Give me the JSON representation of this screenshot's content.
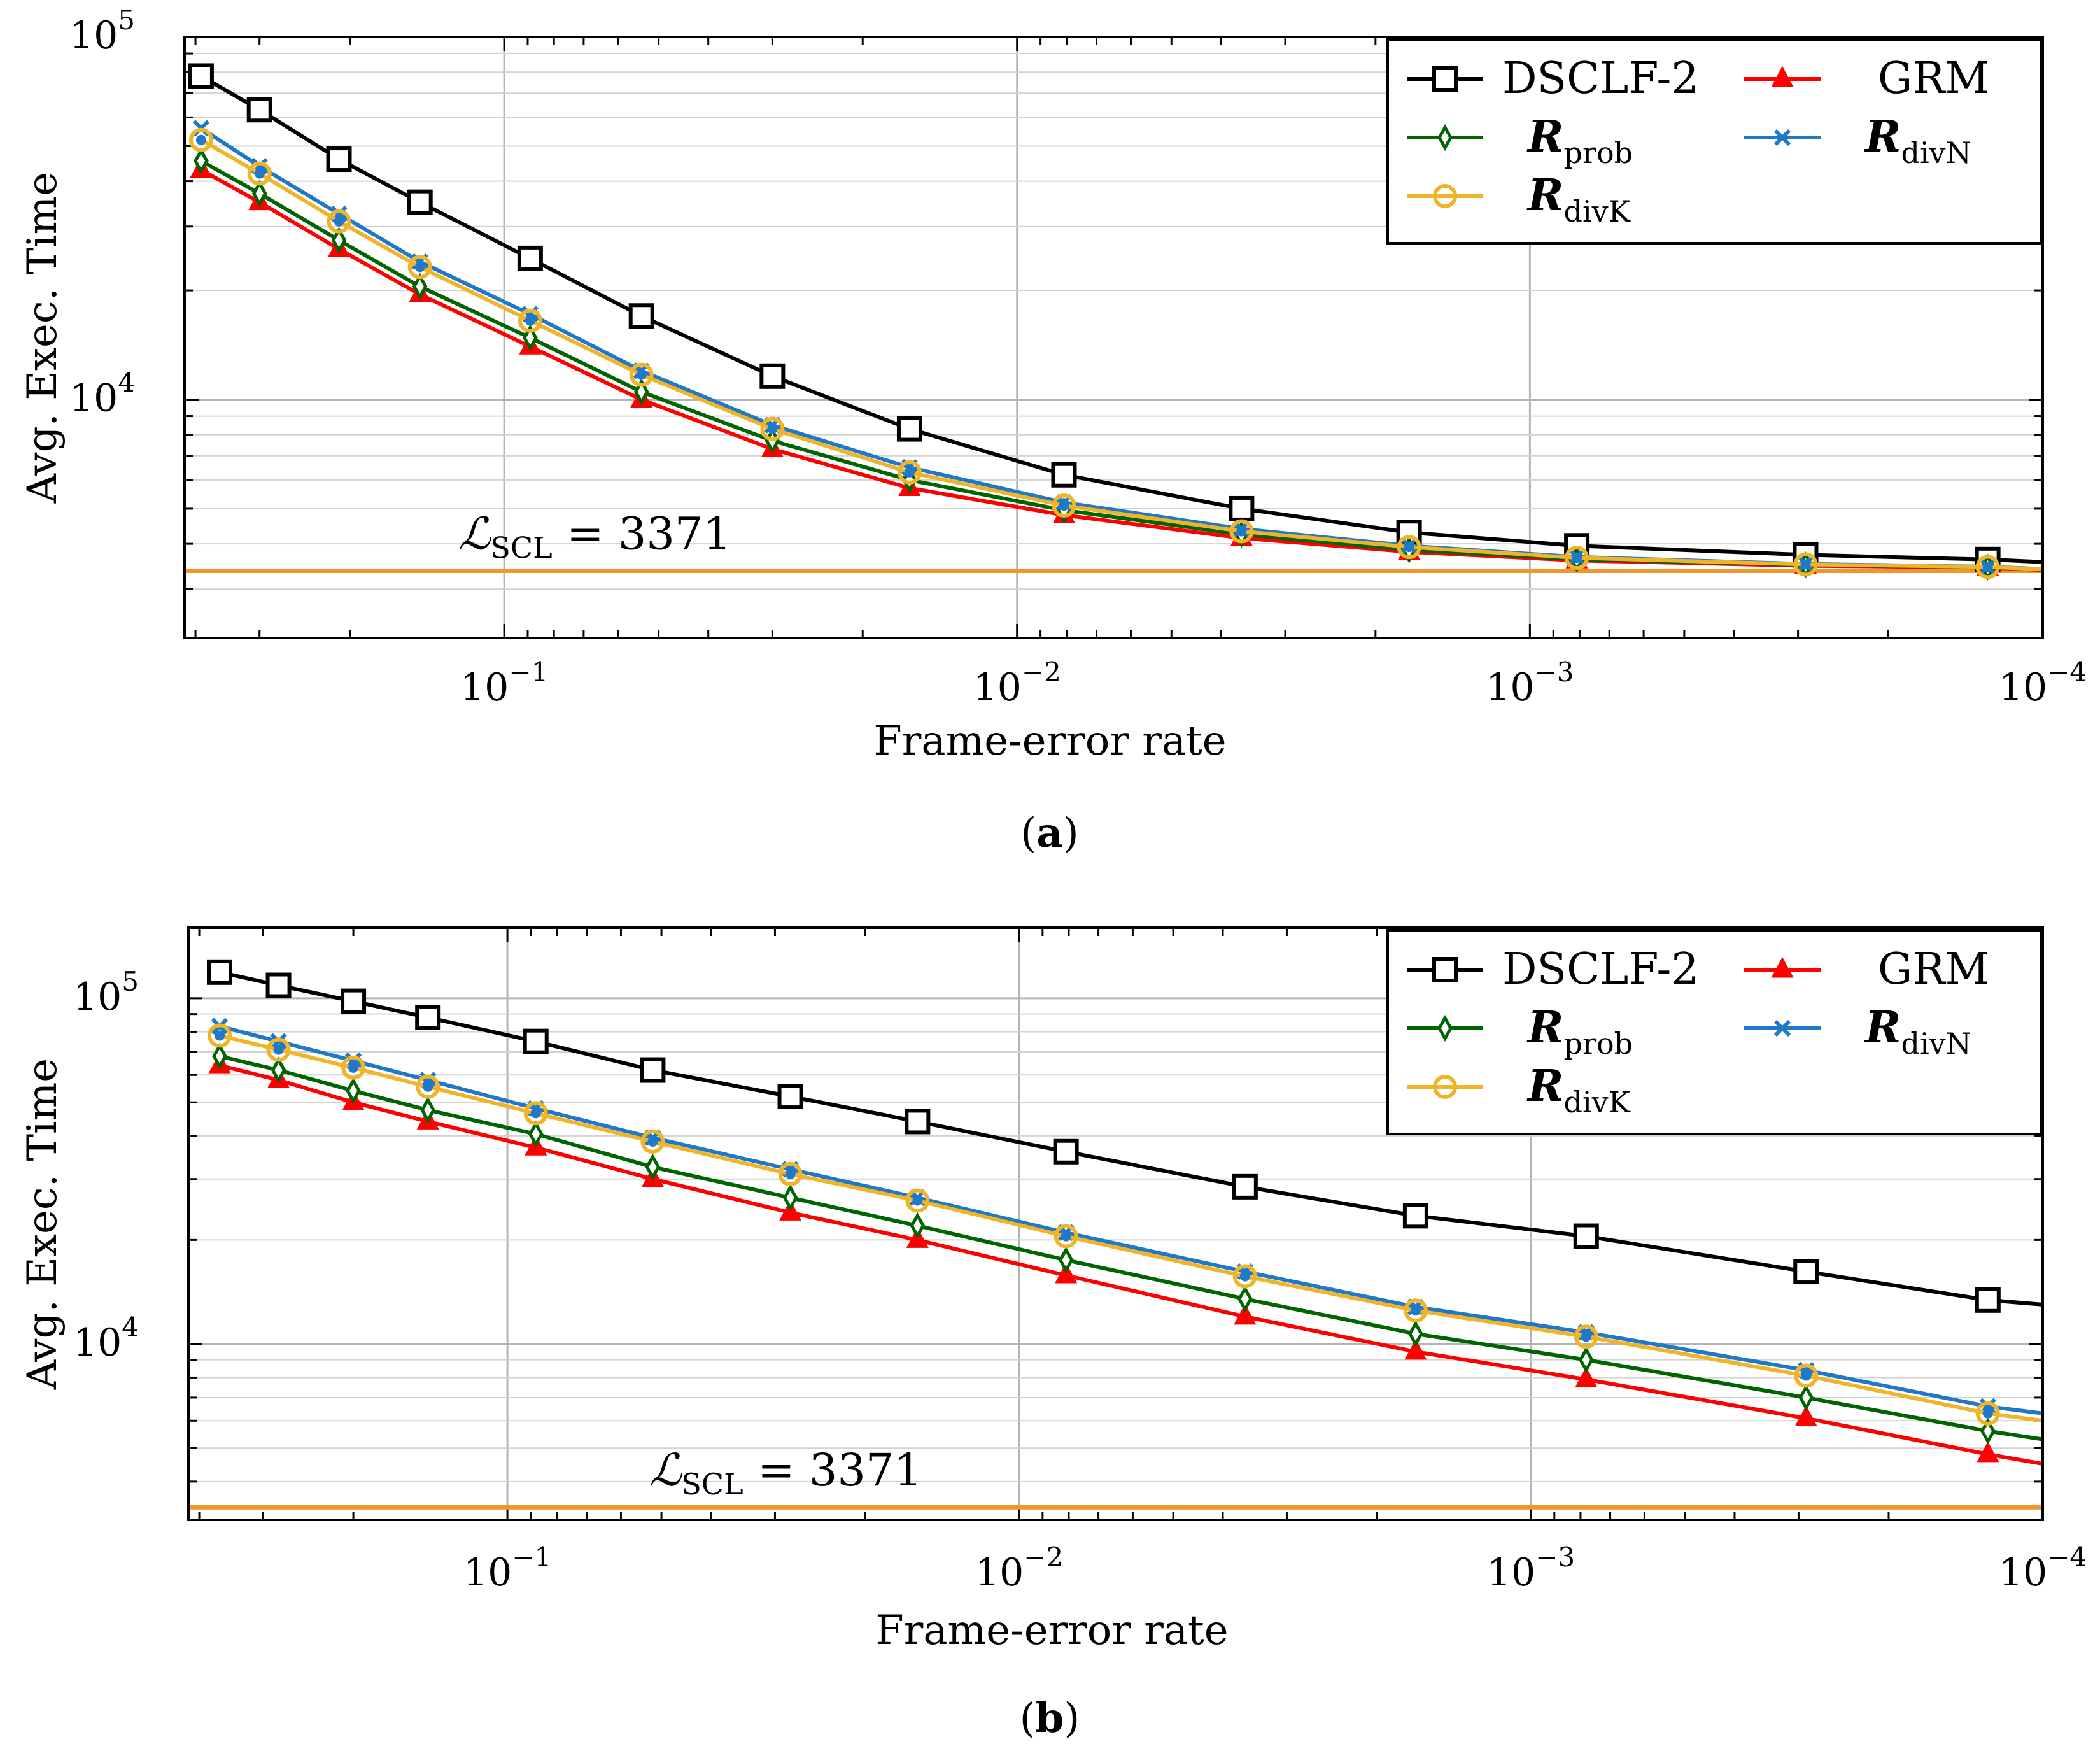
{
  "chart_data": [
    {
      "type": "line",
      "panel_caption": "(a)",
      "xlabel": "Frame-error rate",
      "ylabel": "Avg. Exec. Time",
      "x_scale": "log, reversed",
      "y_scale": "log",
      "xlim": [
        0.42,
        0.0001
      ],
      "ylim": [
        2200,
        100000
      ],
      "x_ticks": [
        {
          "value": 0.1,
          "base": "10",
          "exp": "−1"
        },
        {
          "value": 0.01,
          "base": "10",
          "exp": "−2"
        },
        {
          "value": 0.001,
          "base": "10",
          "exp": "−3"
        },
        {
          "value": 0.0001,
          "base": "10",
          "exp": "−4"
        }
      ],
      "y_ticks": [
        {
          "value": 10000,
          "base": "10",
          "exp": "4"
        },
        {
          "value": 100000,
          "base": "10",
          "exp": "5"
        }
      ],
      "legend_position": "top-right",
      "reference_line": {
        "value": 3371,
        "label_main": "ℒ",
        "label_sub": "SCL",
        "label_rest": " = 3371",
        "color": "#f0962a"
      },
      "x": [
        0.39,
        0.3,
        0.21,
        0.146,
        0.089,
        0.054,
        0.03,
        0.0162,
        0.0081,
        0.00365,
        0.00172,
        0.00081,
        0.00029,
        0.000128
      ],
      "series": [
        {
          "name": "DSCLF-2",
          "sub": "",
          "color": "#000000",
          "marker": "square",
          "values": [
            78000,
            63000,
            46000,
            35000,
            24500,
            17000,
            11600,
            8300,
            6200,
            5000,
            4300,
            3950,
            3730,
            3620
          ]
        },
        {
          "name": "GRM",
          "sub": "",
          "color": "#ff0000",
          "marker": "triangle",
          "values": [
            43000,
            35000,
            26000,
            19500,
            14000,
            10000,
            7300,
            5700,
            4800,
            4150,
            3800,
            3600,
            3480,
            3440
          ]
        },
        {
          "name": "R",
          "sub": "prob",
          "color": "#006400",
          "marker": "diamond",
          "values": [
            45500,
            37000,
            27500,
            20500,
            14800,
            10500,
            7700,
            6000,
            4950,
            4250,
            3850,
            3630,
            3500,
            3450
          ]
        },
        {
          "name": "R",
          "sub": "divN",
          "color": "#1f78c8",
          "marker": "x",
          "values": [
            56000,
            44000,
            32500,
            24000,
            17200,
            12000,
            8500,
            6500,
            5200,
            4400,
            3950,
            3680,
            3520,
            3460
          ]
        },
        {
          "name": "R",
          "sub": "divK",
          "color": "#f0b428",
          "marker": "circle",
          "values": [
            52000,
            42000,
            31000,
            23200,
            16500,
            11700,
            8300,
            6300,
            5100,
            4330,
            3920,
            3660,
            3510,
            3455
          ]
        }
      ]
    },
    {
      "type": "line",
      "panel_caption": "(b)",
      "xlabel": "Frame-error rate",
      "ylabel": "Avg. Exec. Time",
      "x_scale": "log, reversed",
      "y_scale": "log",
      "xlim": [
        0.42,
        0.0001
      ],
      "ylim": [
        3100,
        160000
      ],
      "x_ticks": [
        {
          "value": 0.1,
          "base": "10",
          "exp": "−1"
        },
        {
          "value": 0.01,
          "base": "10",
          "exp": "−2"
        },
        {
          "value": 0.001,
          "base": "10",
          "exp": "−3"
        },
        {
          "value": 0.0001,
          "base": "10",
          "exp": "−4"
        }
      ],
      "y_ticks": [
        {
          "value": 10000,
          "base": "10",
          "exp": "4"
        },
        {
          "value": 100000,
          "base": "10",
          "exp": "5"
        }
      ],
      "legend_position": "top-right",
      "reference_line": {
        "value": 3371,
        "label_main": "ℒ",
        "label_sub": "SCL",
        "label_rest": " = 3371",
        "color": "#f0962a"
      },
      "x": [
        0.365,
        0.28,
        0.2,
        0.143,
        0.088,
        0.052,
        0.028,
        0.0158,
        0.0081,
        0.00362,
        0.00168,
        0.00078,
        0.00029,
        0.000128
      ],
      "x_end": 0.0001,
      "series": [
        {
          "name": "DSCLF-2",
          "sub": "",
          "color": "#000000",
          "marker": "square",
          "values": [
            119000,
            109000,
            98000,
            88000,
            75000,
            62000,
            52000,
            44000,
            36000,
            28500,
            23500,
            20500,
            16200,
            13400
          ],
          "end_value": 13000
        },
        {
          "name": "GRM",
          "sub": "",
          "color": "#ff0000",
          "marker": "triangle",
          "values": [
            64000,
            58000,
            50000,
            44000,
            37000,
            30000,
            24000,
            20000,
            15800,
            12000,
            9500,
            7900,
            6100,
            4800
          ],
          "end_value": 4500
        },
        {
          "name": "R",
          "sub": "prob",
          "color": "#006400",
          "marker": "diamond",
          "values": [
            68000,
            62000,
            54000,
            47500,
            40500,
            32500,
            26500,
            22000,
            17500,
            13500,
            10700,
            9000,
            7000,
            5600
          ],
          "end_value": 5300
        },
        {
          "name": "R",
          "sub": "divN",
          "color": "#1f78c8",
          "marker": "x",
          "values": [
            83000,
            75000,
            66000,
            58000,
            48000,
            39500,
            32000,
            26500,
            21000,
            16200,
            12800,
            10800,
            8400,
            6600
          ],
          "end_value": 6300
        },
        {
          "name": "R",
          "sub": "divK",
          "color": "#f0b428",
          "marker": "circle",
          "values": [
            78000,
            71000,
            63000,
            55500,
            46500,
            38500,
            31000,
            26000,
            20500,
            15700,
            12500,
            10500,
            8100,
            6300
          ],
          "end_value": 6000
        }
      ]
    }
  ]
}
